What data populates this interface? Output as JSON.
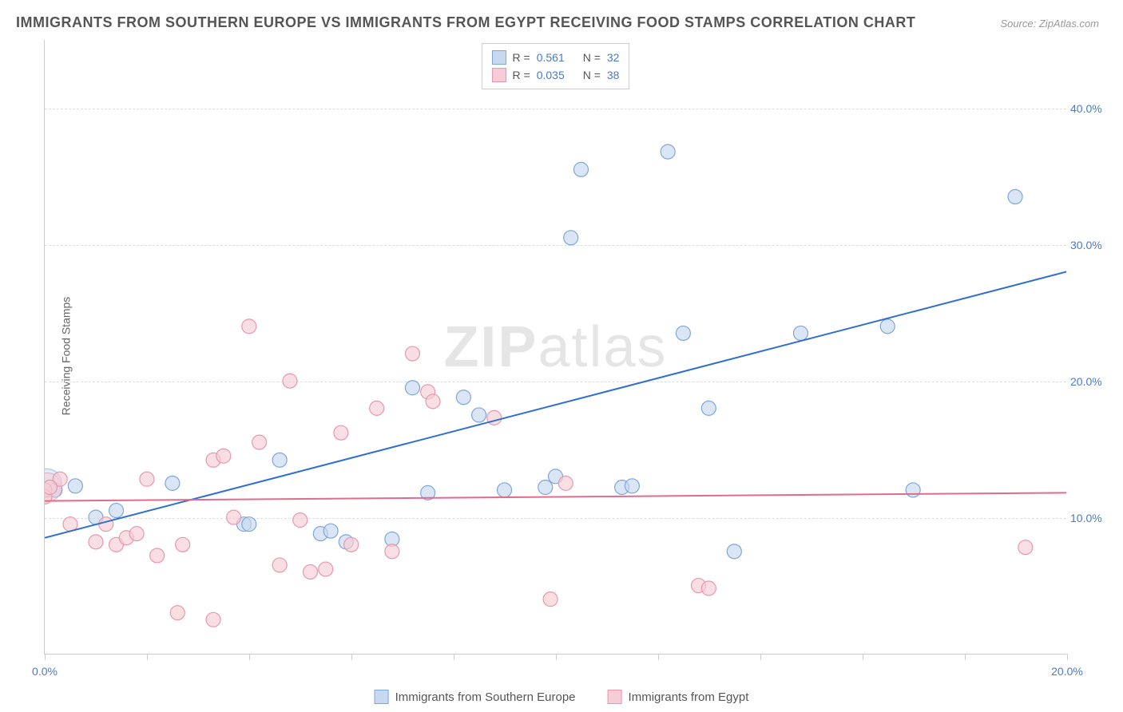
{
  "title": "IMMIGRANTS FROM SOUTHERN EUROPE VS IMMIGRANTS FROM EGYPT RECEIVING FOOD STAMPS CORRELATION CHART",
  "source": "Source: ZipAtlas.com",
  "ylabel": "Receiving Food Stamps",
  "watermark_a": "ZIP",
  "watermark_b": "atlas",
  "chart": {
    "type": "scatter",
    "xlim": [
      0,
      20
    ],
    "ylim": [
      0,
      45
    ],
    "x_ticks": [
      0,
      2,
      4,
      6,
      8,
      10,
      12,
      14,
      16,
      18,
      20
    ],
    "x_tick_labels": {
      "0": "0.0%",
      "20": "20.0%"
    },
    "y_gridlines": [
      10,
      20,
      30,
      40
    ],
    "y_tick_labels": {
      "10": "10.0%",
      "20": "20.0%",
      "30": "30.0%",
      "40": "40.0%"
    },
    "grid_color": "#dddddd",
    "axis_color": "#cccccc",
    "background_color": "#ffffff",
    "tick_label_color": "#4a7ac7",
    "series": [
      {
        "id": "southern_europe",
        "label": "Immigrants from Southern Europe",
        "R": "0.561",
        "N": "32",
        "fill": "#c6d9f0",
        "stroke": "#7fa6d9",
        "fill_opacity": 0.65,
        "marker_radius": 9,
        "line_color": "#2f6fd1",
        "line_width": 2,
        "trend": {
          "x1": 0,
          "y1": 8.5,
          "x2": 20,
          "y2": 28.0
        },
        "points": [
          [
            0.2,
            12.0
          ],
          [
            0.6,
            12.3
          ],
          [
            1.0,
            10.0
          ],
          [
            1.4,
            10.5
          ],
          [
            2.5,
            12.5
          ],
          [
            3.9,
            9.5
          ],
          [
            4.0,
            9.5
          ],
          [
            4.6,
            14.2
          ],
          [
            5.4,
            8.8
          ],
          [
            5.6,
            9.0
          ],
          [
            5.9,
            8.2
          ],
          [
            6.8,
            8.4
          ],
          [
            7.2,
            19.5
          ],
          [
            7.5,
            11.8
          ],
          [
            8.2,
            18.8
          ],
          [
            8.5,
            17.5
          ],
          [
            9.0,
            12.0
          ],
          [
            9.8,
            12.2
          ],
          [
            10.0,
            13.0
          ],
          [
            10.3,
            30.5
          ],
          [
            10.5,
            35.5
          ],
          [
            11.3,
            12.2
          ],
          [
            11.5,
            12.3
          ],
          [
            12.2,
            36.8
          ],
          [
            12.5,
            23.5
          ],
          [
            13.0,
            18.0
          ],
          [
            13.5,
            7.5
          ],
          [
            14.8,
            23.5
          ],
          [
            16.5,
            24.0
          ],
          [
            17.0,
            12.0
          ],
          [
            19.0,
            33.5
          ],
          [
            0.0,
            12.0
          ]
        ],
        "big_points": [
          [
            0.05,
            12.5
          ]
        ]
      },
      {
        "id": "egypt",
        "label": "Immigrants from Egypt",
        "R": "0.035",
        "N": "38",
        "fill": "#f6cdd6",
        "stroke": "#e798ac",
        "fill_opacity": 0.65,
        "marker_radius": 9,
        "line_color": "#e26a8c",
        "line_width": 2,
        "trend": {
          "x1": 0,
          "y1": 11.2,
          "x2": 20,
          "y2": 11.8
        },
        "points": [
          [
            0.3,
            12.8
          ],
          [
            0.5,
            9.5
          ],
          [
            1.0,
            8.2
          ],
          [
            1.2,
            9.5
          ],
          [
            1.4,
            8.0
          ],
          [
            1.6,
            8.5
          ],
          [
            1.8,
            8.8
          ],
          [
            2.0,
            12.8
          ],
          [
            2.2,
            7.2
          ],
          [
            2.6,
            3.0
          ],
          [
            2.7,
            8.0
          ],
          [
            3.3,
            14.2
          ],
          [
            3.3,
            2.5
          ],
          [
            3.5,
            14.5
          ],
          [
            3.7,
            10.0
          ],
          [
            4.0,
            24.0
          ],
          [
            4.2,
            15.5
          ],
          [
            4.6,
            6.5
          ],
          [
            4.8,
            20.0
          ],
          [
            5.0,
            9.8
          ],
          [
            5.2,
            6.0
          ],
          [
            5.5,
            6.2
          ],
          [
            5.8,
            16.2
          ],
          [
            6.0,
            8.0
          ],
          [
            6.5,
            18.0
          ],
          [
            6.8,
            7.5
          ],
          [
            7.2,
            22.0
          ],
          [
            7.5,
            19.2
          ],
          [
            7.6,
            18.5
          ],
          [
            8.8,
            17.3
          ],
          [
            9.9,
            4.0
          ],
          [
            10.2,
            12.5
          ],
          [
            12.8,
            5.0
          ],
          [
            13.0,
            4.8
          ],
          [
            19.2,
            7.8
          ],
          [
            0.0,
            12.0
          ],
          [
            0.0,
            11.5
          ],
          [
            0.1,
            12.2
          ]
        ],
        "big_points": [
          [
            0.05,
            12.2
          ]
        ]
      }
    ]
  },
  "legend_top": {
    "rows": [
      {
        "series": 0,
        "R_label": "R =",
        "N_label": "N ="
      },
      {
        "series": 1,
        "R_label": "R =",
        "N_label": "N ="
      }
    ]
  }
}
